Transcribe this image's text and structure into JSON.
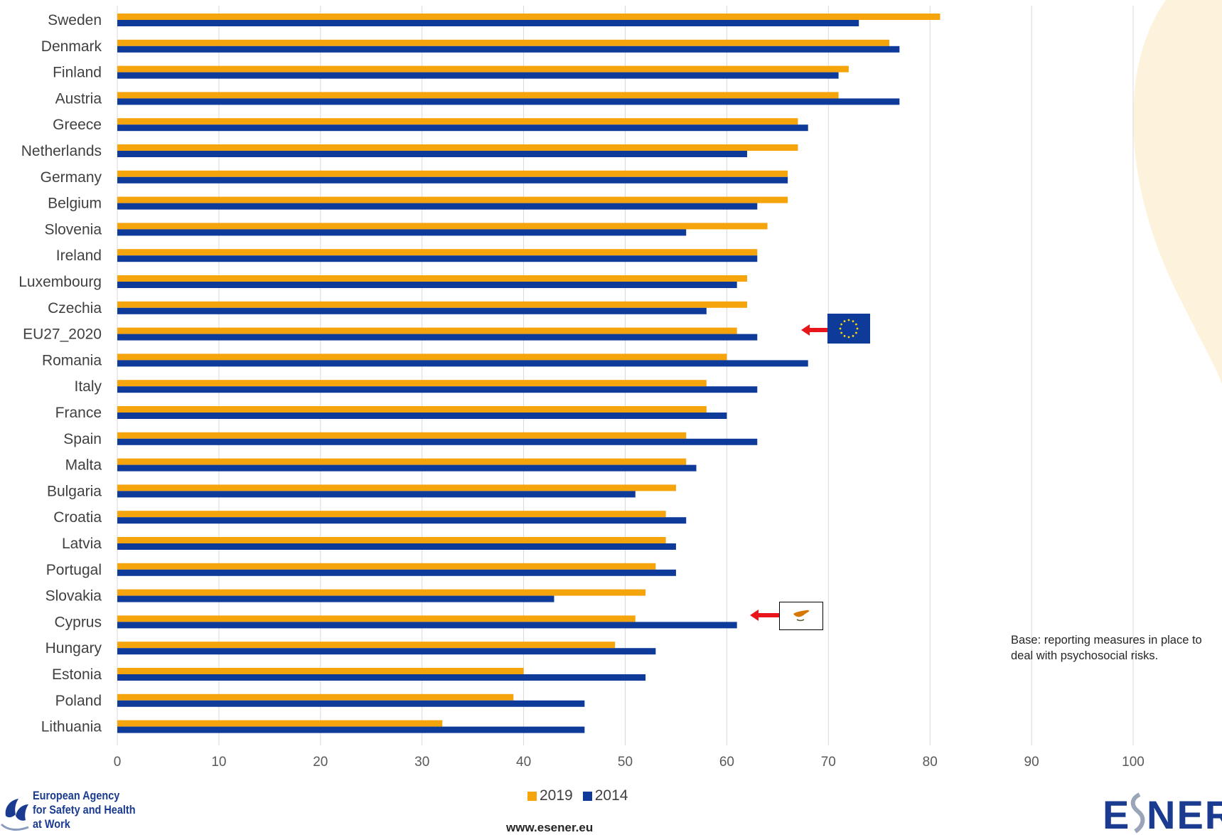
{
  "chart_data": {
    "type": "bar",
    "orientation": "horizontal",
    "categories": [
      "Sweden",
      "Denmark",
      "Finland",
      "Austria",
      "Greece",
      "Netherlands",
      "Germany",
      "Belgium",
      "Slovenia",
      "Ireland",
      "Luxembourg",
      "Czechia",
      "EU27_2020",
      "Romania",
      "Italy",
      "France",
      "Spain",
      "Malta",
      "Bulgaria",
      "Croatia",
      "Latvia",
      "Portugal",
      "Slovakia",
      "Cyprus",
      "Hungary",
      "Estonia",
      "Poland",
      "Lithuania"
    ],
    "series": [
      {
        "name": "2019",
        "color": "#F5A40C",
        "values": [
          81,
          76,
          72,
          71,
          67,
          67,
          66,
          66,
          64,
          63,
          62,
          62,
          61,
          60,
          58,
          58,
          56,
          56,
          55,
          54,
          54,
          53,
          52,
          51,
          49,
          40,
          39,
          32
        ]
      },
      {
        "name": "2014",
        "color": "#0E3A9A",
        "values": [
          73,
          77,
          71,
          77,
          68,
          62,
          66,
          63,
          56,
          63,
          61,
          58,
          63,
          68,
          63,
          60,
          63,
          57,
          51,
          56,
          55,
          55,
          43,
          61,
          53,
          52,
          46,
          46
        ]
      }
    ],
    "xlim": [
      0,
      100
    ],
    "xticks": [
      0,
      10,
      20,
      30,
      40,
      50,
      60,
      70,
      80,
      90,
      100
    ],
    "grid": "vertical",
    "legend_position": "bottom-center",
    "highlighted_categories": [
      "EU27_2020",
      "Cyprus"
    ]
  },
  "note": "Base: reporting measures in place to deal with psychosocial risks.",
  "website": "www.esener.eu",
  "logos": {
    "agency_lines": [
      "European Agency",
      "for Safety and Health",
      "at Work"
    ],
    "esener": "ESENER"
  },
  "icons": [
    "eu-flag-icon",
    "cyprus-flag-icon",
    "red-arrow-icon"
  ],
  "colors": {
    "accent_arrow": "#E8161B",
    "grid": "#D9D9D9",
    "swoosh": "#FDF3DD"
  }
}
